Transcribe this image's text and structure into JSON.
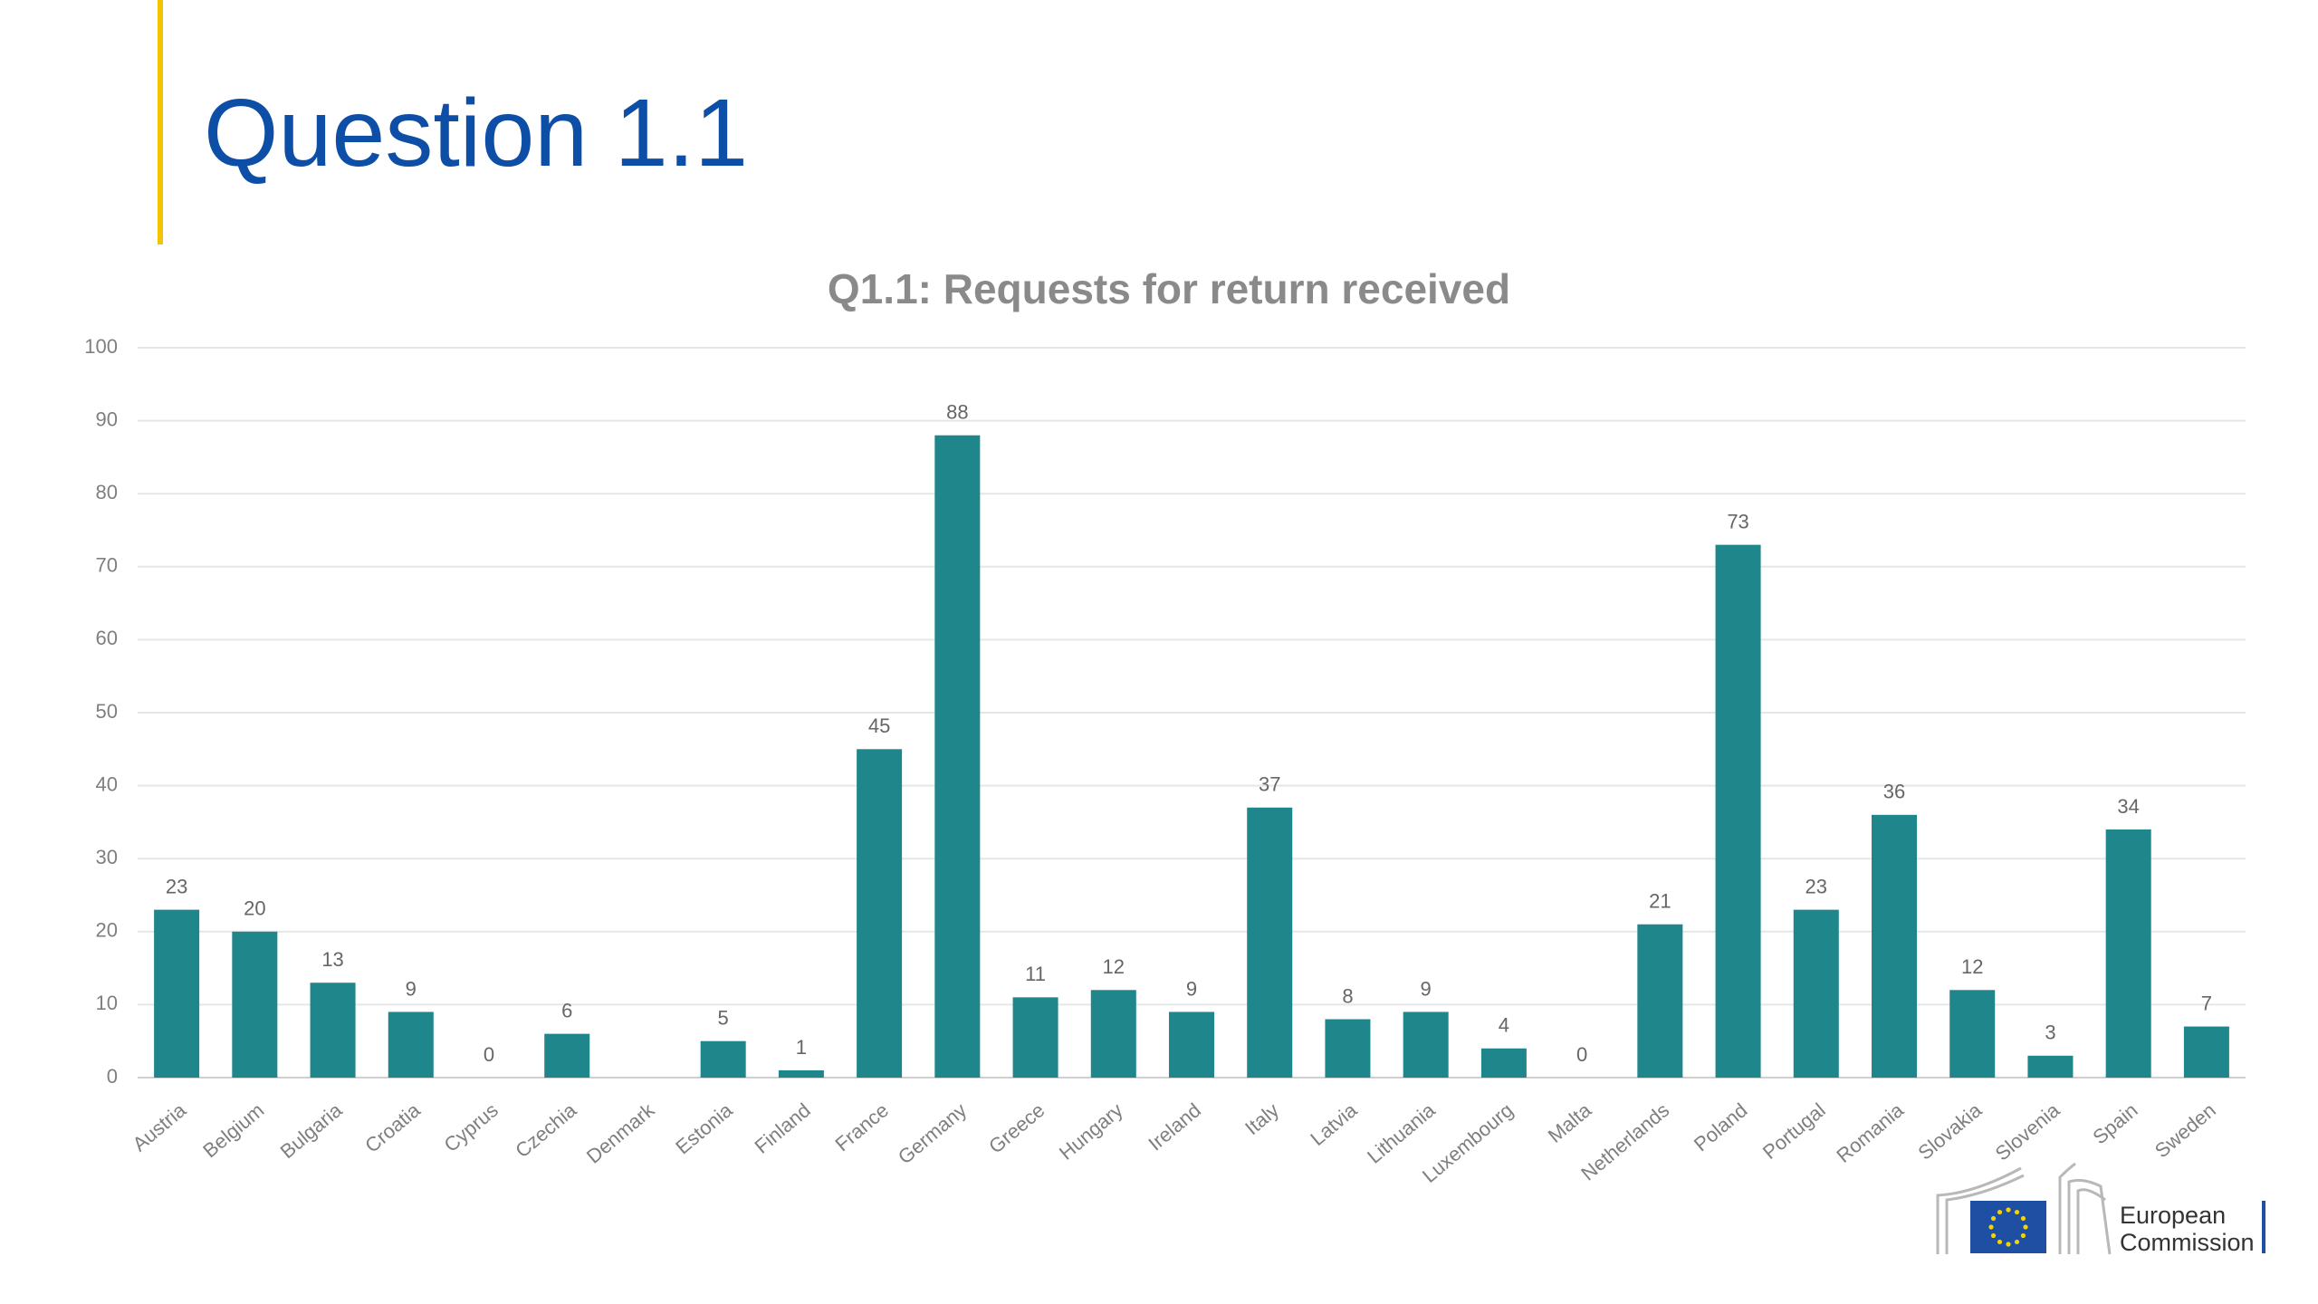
{
  "title": "Question 1.1",
  "logo": {
    "lines": [
      "European",
      "Commission"
    ]
  },
  "chart_data": {
    "type": "bar",
    "title": "Q1.1: Requests for return received",
    "categories": [
      "Austria",
      "Belgium",
      "Bulgaria",
      "Croatia",
      "Cyprus",
      "Czechia",
      "Denmark",
      "Estonia",
      "Finland",
      "France",
      "Germany",
      "Greece",
      "Hungary",
      "Ireland",
      "Italy",
      "Latvia",
      "Lithuania",
      "Luxembourg",
      "Malta",
      "Netherlands",
      "Poland",
      "Portugal",
      "Romania",
      "Slovakia",
      "Slovenia",
      "Spain",
      "Sweden"
    ],
    "values": [
      23,
      20,
      13,
      9,
      0,
      6,
      null,
      5,
      1,
      45,
      88,
      11,
      12,
      9,
      37,
      8,
      9,
      4,
      0,
      21,
      73,
      23,
      36,
      12,
      3,
      34,
      7
    ],
    "color": "#1f868b",
    "ylim": [
      0,
      100
    ],
    "yticks": [
      0,
      10,
      20,
      30,
      40,
      50,
      60,
      70,
      80,
      90,
      100
    ],
    "grid": true
  }
}
